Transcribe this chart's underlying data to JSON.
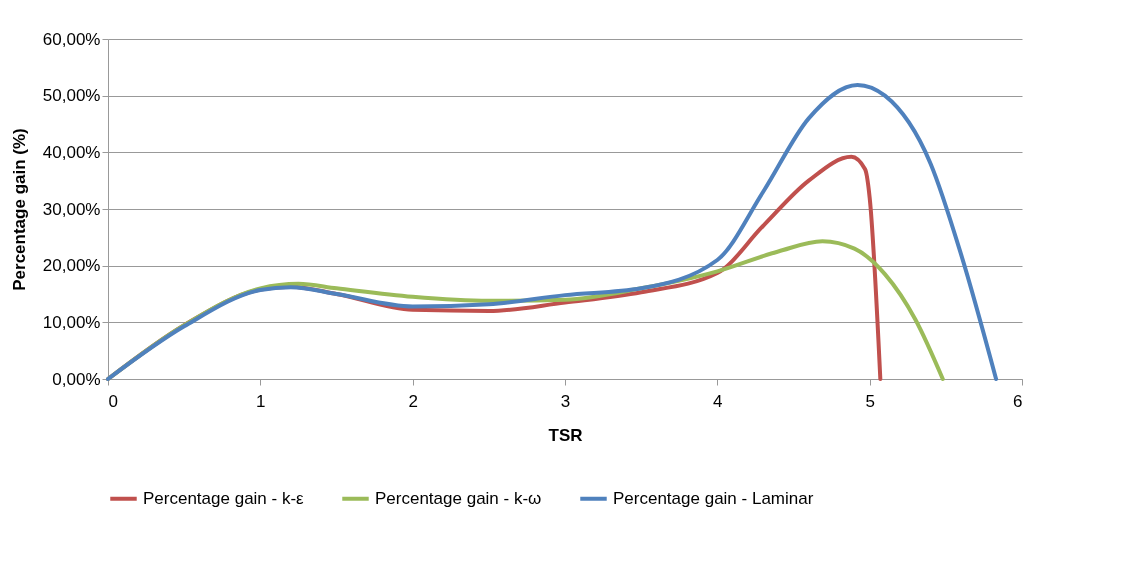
{
  "chart_data": {
    "type": "line",
    "xlabel": "TSR",
    "ylabel": "Percentage gain (%)",
    "xlim": [
      0,
      6
    ],
    "xticks": [
      0,
      1,
      2,
      3,
      4,
      5,
      6
    ],
    "ylim": [
      0,
      60
    ],
    "yticks": [
      {
        "value": 0,
        "label": "0,00%"
      },
      {
        "value": 10,
        "label": "10,00%"
      },
      {
        "value": 20,
        "label": "20,00%"
      },
      {
        "value": 30,
        "label": "30,00%"
      },
      {
        "value": 40,
        "label": "40,00%"
      },
      {
        "value": 50,
        "label": "50,00%"
      },
      {
        "value": 60,
        "label": "60,00%"
      }
    ],
    "grid": "y",
    "legend": "bottom",
    "marker": "none",
    "line_style": "solid",
    "series": [
      {
        "name": "Percentage gain - k-ε",
        "color": "#c0504d",
        "x": [
          0,
          0.5,
          1,
          1.2,
          1.5,
          2,
          2.5,
          3,
          3.5,
          4,
          4.3,
          4.6,
          4.88,
          4.97,
          5.0,
          5.07
        ],
        "values": [
          0,
          9.5,
          15.8,
          16.3,
          15,
          12.2,
          12,
          13.5,
          15.3,
          18.7,
          27,
          35,
          39.2,
          37,
          32,
          0
        ]
      },
      {
        "name": "Percentage gain - k-ω",
        "color": "#9bbb59",
        "x": [
          0,
          0.5,
          1,
          1.25,
          1.5,
          2,
          2.5,
          3,
          3.5,
          4,
          4.4,
          4.69,
          4.9,
          5.1,
          5.3,
          5.48
        ],
        "values": [
          0,
          9.5,
          16,
          16.8,
          16,
          14.5,
          13.8,
          14,
          16,
          19,
          22.5,
          24.3,
          23,
          18.5,
          10.5,
          0
        ]
      },
      {
        "name": "Percentage gain - Laminar",
        "color": "#4f81bd",
        "x": [
          0,
          0.5,
          1,
          1.2,
          1.5,
          2,
          2.5,
          3,
          3.5,
          4,
          4.3,
          4.6,
          4.92,
          5.1,
          5.4,
          5.6,
          5.83
        ],
        "values": [
          0,
          9.3,
          15.7,
          16.2,
          15,
          12.8,
          13.2,
          14.8,
          16,
          21,
          33,
          46,
          51.9,
          50,
          38,
          22,
          0
        ]
      }
    ]
  }
}
